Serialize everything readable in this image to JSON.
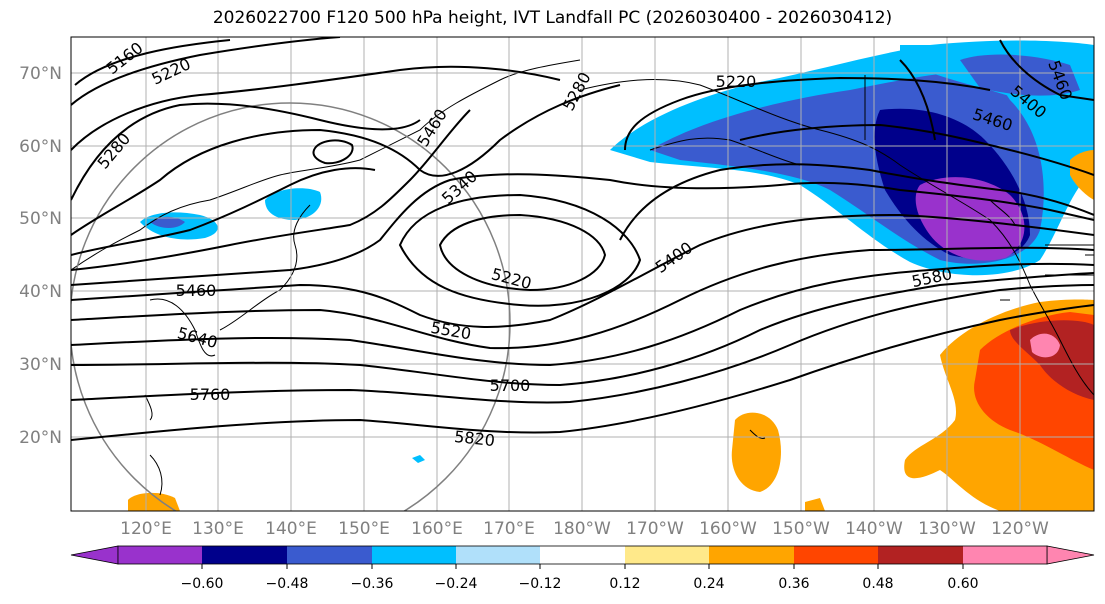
{
  "title": "2026022700 F120 500 hPa height, IVT Landfall PC (2026030400 - 2026030412)",
  "lat_labels": [
    "70°N",
    "60°N",
    "50°N",
    "40°N",
    "30°N",
    "20°N"
  ],
  "lon_labels": [
    "120°E",
    "130°E",
    "140°E",
    "150°E",
    "160°E",
    "170°E",
    "180°W",
    "170°W",
    "160°W",
    "150°W",
    "140°W",
    "130°W",
    "120°W"
  ],
  "contour_labels": [
    "5160",
    "5220",
    "5280",
    "5280",
    "5460",
    "5340",
    "5460",
    "5640",
    "5760",
    "5520",
    "5220",
    "5700",
    "5820",
    "5400",
    "5580",
    "5220",
    "5460",
    "5400",
    "5460"
  ],
  "colorbar": {
    "ticks": [
      "−0.60",
      "−0.48",
      "−0.36",
      "−0.24",
      "−0.12",
      "0.12",
      "0.24",
      "0.36",
      "0.48",
      "0.60"
    ],
    "colors": [
      "#9932cc",
      "#00008b",
      "#3a5bcf",
      "#00bfff",
      "#b0e0fa",
      "#ffffff",
      "#ffe98a",
      "#ffa500",
      "#ff4500",
      "#b22222",
      "#ff85b0"
    ]
  }
}
